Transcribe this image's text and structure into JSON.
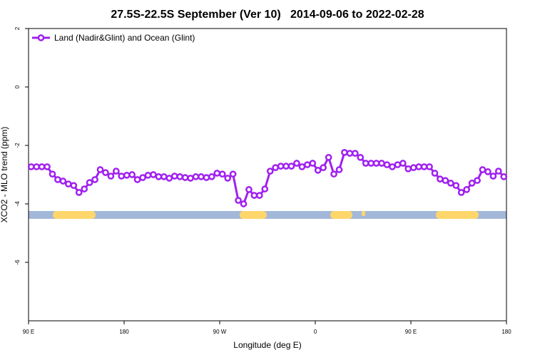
{
  "chart_data": {
    "type": "line",
    "title": "27.5S-22.5S September (Ver 10)   2014-09-06 to 2022-02-28",
    "xlabel": "Longitude (deg E)",
    "ylabel": "XCO2 - MLO trend (ppm)",
    "xlim": [
      90,
      540
    ],
    "xticks": [
      {
        "value": 90,
        "label": "90 E"
      },
      {
        "value": 180,
        "label": "180"
      },
      {
        "value": 270,
        "label": "90 W"
      },
      {
        "value": 360,
        "label": "0"
      },
      {
        "value": 450,
        "label": "90 E"
      },
      {
        "value": 540,
        "label": "180"
      }
    ],
    "ylim": [
      -8,
      2
    ],
    "yticks": [
      -6,
      -4,
      -2,
      0,
      2
    ],
    "legend": "upper left",
    "x": [
      92.5,
      97.5,
      102.5,
      107.5,
      112.5,
      117.5,
      122.5,
      127.5,
      132.5,
      137.5,
      142.5,
      147.5,
      152.5,
      157.5,
      162.5,
      167.5,
      172.5,
      177.5,
      182.5,
      187.5,
      192.5,
      197.5,
      202.5,
      207.5,
      212.5,
      217.5,
      222.5,
      227.5,
      232.5,
      237.5,
      242.5,
      247.5,
      252.5,
      257.5,
      262.5,
      267.5,
      272.5,
      277.5,
      282.5,
      287.5,
      292.5,
      297.5,
      302.5,
      307.5,
      312.5,
      317.5,
      322.5,
      327.5,
      332.5,
      337.5,
      342.5,
      347.5,
      352.5,
      357.5,
      362.5,
      367.5,
      372.5,
      377.5,
      382.5,
      387.5,
      392.5,
      397.5,
      402.5,
      407.5,
      412.5,
      417.5,
      422.5,
      427.5,
      432.5,
      437.5,
      442.5,
      447.5,
      452.5,
      457.5,
      462.5,
      467.5,
      472.5,
      477.5,
      482.5,
      487.5,
      492.5,
      497.5,
      502.5,
      507.5,
      512.5,
      517.5,
      522.5,
      527.5,
      532.5,
      537.5
    ],
    "series": [
      {
        "name": "Land (Nadir&Glint) and Ocean (Glint)",
        "color": "#a020f0",
        "values": [
          -2.73,
          -2.73,
          -2.73,
          -2.73,
          -2.98,
          -3.17,
          -3.22,
          -3.32,
          -3.37,
          -3.61,
          -3.49,
          -3.27,
          -3.17,
          -2.83,
          -2.93,
          -3.05,
          -2.88,
          -3.05,
          -3.02,
          -3.0,
          -3.17,
          -3.1,
          -3.02,
          -3.0,
          -3.07,
          -3.07,
          -3.12,
          -3.05,
          -3.07,
          -3.1,
          -3.12,
          -3.07,
          -3.07,
          -3.1,
          -3.07,
          -2.95,
          -2.98,
          -3.12,
          -2.98,
          -3.88,
          -4.0,
          -3.51,
          -3.71,
          -3.71,
          -3.49,
          -2.88,
          -2.76,
          -2.71,
          -2.71,
          -2.71,
          -2.61,
          -2.73,
          -2.66,
          -2.61,
          -2.85,
          -2.76,
          -2.41,
          -2.98,
          -2.83,
          -2.24,
          -2.27,
          -2.27,
          -2.41,
          -2.61,
          -2.61,
          -2.61,
          -2.61,
          -2.66,
          -2.73,
          -2.66,
          -2.61,
          -2.8,
          -2.76,
          -2.73,
          -2.73,
          -2.73,
          -2.95,
          -3.15,
          -3.2,
          -3.29,
          -3.37,
          -3.61,
          -3.51,
          -3.29,
          -3.2,
          -2.83,
          -2.9,
          -3.05,
          -2.88,
          -3.07
        ]
      }
    ]
  }
}
